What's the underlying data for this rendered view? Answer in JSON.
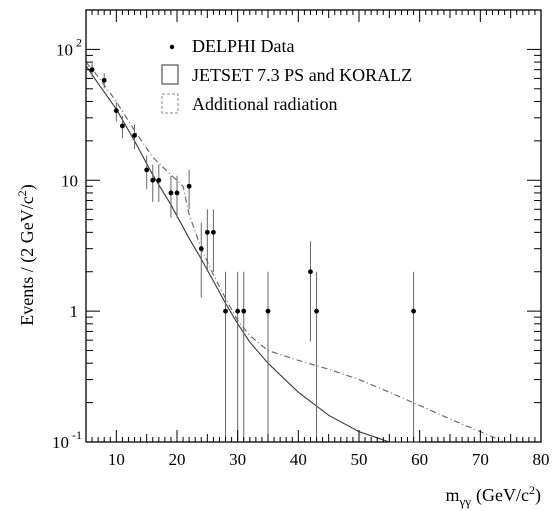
{
  "chart_data": {
    "type": "scatter",
    "title": "",
    "ylabel": "Events / (2 GeV/c",
    "ylabel_sup": "2",
    "ylabel_close": ")",
    "xlabel_main": "m",
    "xlabel_sub": "γγ",
    "xlabel_units": "(GeV/c",
    "xlabel_sup": "2",
    "xlabel_close": ")",
    "xlim": [
      5,
      80
    ],
    "ylim": [
      0.1,
      200
    ],
    "yscale": "log",
    "grid": false,
    "legend_position": "top-right",
    "x_ticks": [
      {
        "value": 10,
        "label": "10"
      },
      {
        "value": 20,
        "label": "20"
      },
      {
        "value": 30,
        "label": "30"
      },
      {
        "value": 40,
        "label": "40"
      },
      {
        "value": 50,
        "label": "50"
      },
      {
        "value": 60,
        "label": "60"
      },
      {
        "value": 70,
        "label": "70"
      },
      {
        "value": 80,
        "label": "80"
      }
    ],
    "y_ticks": [
      {
        "value": 0.1,
        "base": "10",
        "exp": "-1"
      },
      {
        "value": 1,
        "base": "1",
        "exp": ""
      },
      {
        "value": 10,
        "base": "10",
        "exp": ""
      },
      {
        "value": 100,
        "base": "10",
        "exp": "2"
      }
    ],
    "legend": [
      {
        "label": "DELPHI Data",
        "marker": "dot"
      },
      {
        "label": "JETSET 7.3 PS and KORALZ",
        "marker": "solid-box"
      },
      {
        "label": "Additional radiation",
        "marker": "dashed-box"
      }
    ],
    "series": [
      {
        "name": "DELPHI Data",
        "kind": "points",
        "x": [
          6,
          8,
          10,
          11,
          13,
          15,
          16,
          17,
          19,
          20,
          22,
          24,
          25,
          26,
          28,
          30,
          31,
          35,
          42,
          43,
          59
        ],
        "y": [
          70,
          58,
          34,
          26,
          22,
          12,
          10,
          10,
          8,
          8,
          9,
          3,
          4,
          4,
          1,
          1,
          1,
          1,
          2,
          1,
          1
        ]
      },
      {
        "name": "JETSET 7.3 PS and KORALZ",
        "kind": "curve",
        "x": [
          5,
          7,
          10,
          13,
          16,
          19,
          22,
          24,
          26,
          28,
          30,
          32,
          35,
          40,
          45,
          50,
          55,
          60
        ],
        "y": [
          75,
          55,
          35,
          20,
          11,
          6.5,
          3.6,
          2.5,
          1.7,
          1.15,
          0.8,
          0.58,
          0.4,
          0.24,
          0.16,
          0.12,
          0.1,
          0.1
        ]
      },
      {
        "name": "Additional radiation",
        "kind": "curve",
        "x": [
          5,
          7,
          10,
          13,
          16,
          19,
          21,
          22,
          24,
          26,
          28,
          30,
          32,
          35,
          40,
          45,
          50,
          55,
          60,
          65,
          70,
          74
        ],
        "y": [
          80,
          62,
          40,
          24,
          15,
          11,
          9,
          5.5,
          3.0,
          1.9,
          1.25,
          0.85,
          0.65,
          0.5,
          0.42,
          0.36,
          0.3,
          0.24,
          0.19,
          0.15,
          0.12,
          0.1
        ]
      }
    ]
  }
}
